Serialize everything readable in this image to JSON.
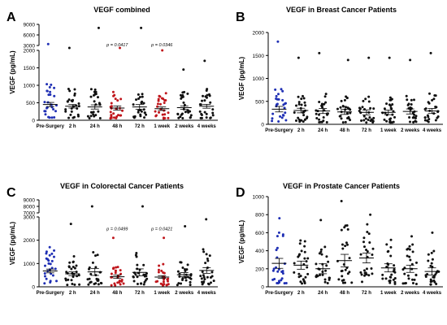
{
  "chart_data": [
    {
      "type": "scatter",
      "panel": "A",
      "title": "VEGF combined",
      "ylabel": "VEGF (pg/mL)",
      "categories": [
        "Pre-Surgery",
        "2 h",
        "24 h",
        "48 h",
        "72 h",
        "1 week",
        "2 weeks",
        "4 weeks"
      ],
      "y_axis": {
        "lower_range": [
          0,
          2000
        ],
        "lower_ticks": [
          0,
          500,
          1000,
          1500,
          2000
        ],
        "upper_range": [
          3000,
          9000
        ],
        "upper_ticks": [
          3000,
          6000,
          9000
        ]
      },
      "series": [
        {
          "category": "Pre-Surgery",
          "color": "#1f2fb4",
          "mean": 450,
          "sem": 60,
          "max": 3400
        },
        {
          "category": "2 h",
          "color": "#111111",
          "mean": 400,
          "sem": 50,
          "max": 2150
        },
        {
          "category": "24 h",
          "color": "#111111",
          "mean": 380,
          "sem": 60,
          "max": 8000
        },
        {
          "category": "48 h",
          "color": "#c0161c",
          "mean": 350,
          "sem": 60,
          "max": 2100
        },
        {
          "category": "72 h",
          "color": "#111111",
          "mean": 380,
          "sem": 70,
          "max": 8000
        },
        {
          "category": "1 week",
          "color": "#c0161c",
          "mean": 330,
          "sem": 50,
          "max": 2000
        },
        {
          "category": "2 weeks",
          "color": "#111111",
          "mean": 360,
          "sem": 50,
          "max": 1450
        },
        {
          "category": "4 weeks",
          "color": "#111111",
          "mean": 400,
          "sem": 55,
          "max": 1700
        }
      ],
      "annotations": [
        {
          "category": "48 h",
          "text": "p = 0.0417",
          "y": 2200
        },
        {
          "category": "1 week",
          "text": "p = 0.0346",
          "y": 2200
        }
      ]
    },
    {
      "type": "scatter",
      "panel": "B",
      "title": "VEGF in Breast Cancer Patients",
      "ylabel": "VEGF (pg/mL)",
      "categories": [
        "Pre-Surgery",
        "2 h",
        "24 h",
        "48 h",
        "72 h",
        "1 week",
        "2 weeks",
        "4 weeks"
      ],
      "ylim": [
        0,
        2000
      ],
      "y_ticks": [
        0,
        500,
        1000,
        1500,
        2000
      ],
      "series": [
        {
          "category": "Pre-Surgery",
          "color": "#1f2fb4",
          "mean": 330,
          "sem": 60,
          "max": 1800
        },
        {
          "category": "2 h",
          "color": "#111111",
          "mean": 300,
          "sem": 50,
          "max": 1450
        },
        {
          "category": "24 h",
          "color": "#111111",
          "mean": 290,
          "sem": 55,
          "max": 1550
        },
        {
          "category": "48 h",
          "color": "#111111",
          "mean": 270,
          "sem": 55,
          "max": 1400
        },
        {
          "category": "72 h",
          "color": "#111111",
          "mean": 260,
          "sem": 55,
          "max": 1450
        },
        {
          "category": "1 week",
          "color": "#111111",
          "mean": 260,
          "sem": 50,
          "max": 1450
        },
        {
          "category": "2 weeks",
          "color": "#111111",
          "mean": 280,
          "sem": 55,
          "max": 1400
        },
        {
          "category": "4 weeks",
          "color": "#111111",
          "mean": 290,
          "sem": 55,
          "max": 1550
        }
      ]
    },
    {
      "type": "scatter",
      "panel": "C",
      "title": "VEGF in Colorectal Cancer Patients",
      "ylabel": "VEGF (pg/mL)",
      "categories": [
        "Pre-Surgery",
        "2 h",
        "24 h",
        "48 h",
        "72 h",
        "1 week",
        "2 weeks",
        "4 weeks"
      ],
      "y_axis": {
        "lower_range": [
          0,
          3000
        ],
        "lower_ticks": [
          0,
          1000,
          2000,
          3000
        ],
        "upper_range": [
          7000,
          9000
        ],
        "upper_ticks": [
          7000,
          8000,
          9000
        ]
      },
      "series": [
        {
          "category": "Pre-Surgery",
          "color": "#1f2fb4",
          "mean": 680,
          "sem": 80,
          "max": 1700
        },
        {
          "category": "2 h",
          "color": "#111111",
          "mean": 560,
          "sem": 80,
          "max": 2700
        },
        {
          "category": "24 h",
          "color": "#111111",
          "mean": 640,
          "sem": 150,
          "max": 8000
        },
        {
          "category": "48 h",
          "color": "#c0161c",
          "mean": 430,
          "sem": 70,
          "max": 2100
        },
        {
          "category": "72 h",
          "color": "#111111",
          "mean": 620,
          "sem": 150,
          "max": 8000
        },
        {
          "category": "1 week",
          "color": "#c0161c",
          "mean": 420,
          "sem": 60,
          "max": 2100
        },
        {
          "category": "2 weeks",
          "color": "#111111",
          "mean": 520,
          "sem": 90,
          "max": 2600
        },
        {
          "category": "4 weeks",
          "color": "#111111",
          "mean": 700,
          "sem": 120,
          "max": 2900
        }
      ],
      "annotations": [
        {
          "category": "48 h",
          "text": "p = 0.0499",
          "y": 2350
        },
        {
          "category": "1 week",
          "text": "p = 0.0421",
          "y": 2350
        }
      ]
    },
    {
      "type": "scatter",
      "panel": "D",
      "title": "VEGF in Prostate Cancer Patients",
      "ylabel": "VEGF (pg/mL)",
      "categories": [
        "Pre-Surgery",
        "2 h",
        "24 h",
        "48 h",
        "72 h",
        "1 week",
        "2 weeks",
        "4 weeks"
      ],
      "ylim": [
        0,
        1000
      ],
      "y_ticks": [
        0,
        200,
        400,
        600,
        800,
        1000
      ],
      "series": [
        {
          "category": "Pre-Surgery",
          "color": "#1f2fb4",
          "mean": 260,
          "sem": 55,
          "max": 760
        },
        {
          "category": "2 h",
          "color": "#111111",
          "mean": 240,
          "sem": 45,
          "max": 480
        },
        {
          "category": "24 h",
          "color": "#111111",
          "mean": 200,
          "sem": 55,
          "max": 740
        },
        {
          "category": "48 h",
          "color": "#111111",
          "mean": 290,
          "sem": 70,
          "max": 950
        },
        {
          "category": "72 h",
          "color": "#111111",
          "mean": 320,
          "sem": 55,
          "max": 800
        },
        {
          "category": "1 week",
          "color": "#111111",
          "mean": 210,
          "sem": 45,
          "max": 520
        },
        {
          "category": "2 weeks",
          "color": "#111111",
          "mean": 200,
          "sem": 40,
          "max": 560
        },
        {
          "category": "4 weeks",
          "color": "#111111",
          "mean": 170,
          "sem": 40,
          "max": 600
        }
      ]
    }
  ]
}
